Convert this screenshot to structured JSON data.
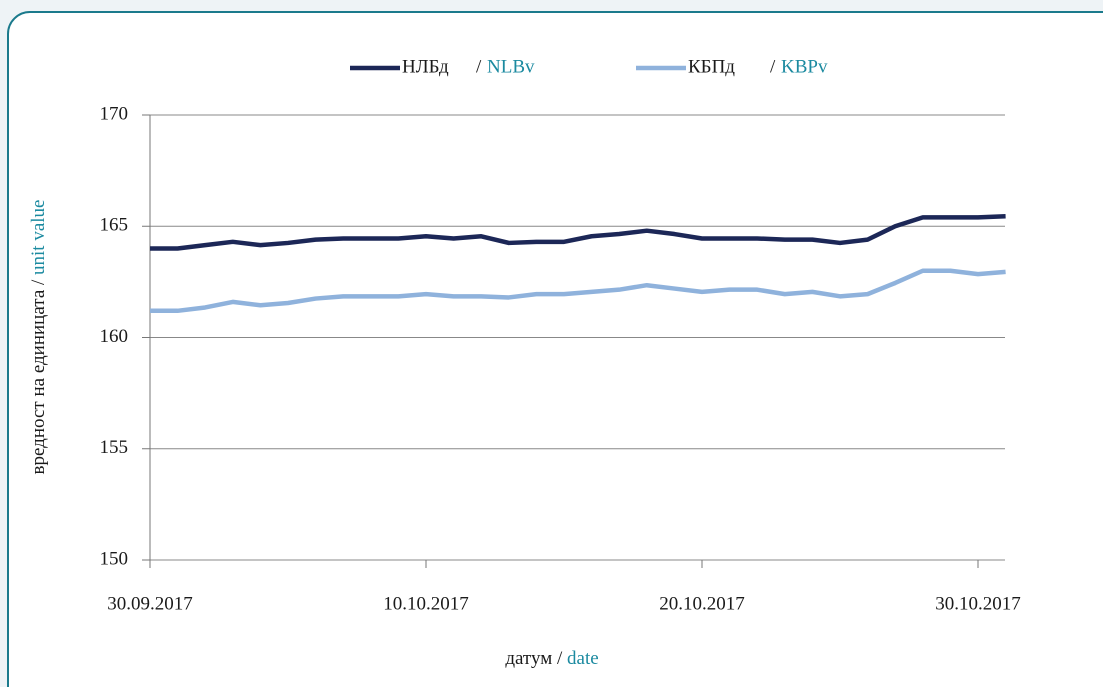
{
  "chart_data": {
    "type": "line",
    "separator": "/",
    "xlabel": [
      "датум",
      "date"
    ],
    "ylabel": [
      "вредност на единицата",
      "unit value"
    ],
    "x": [
      "30.09.2017",
      "01.10.2017",
      "02.10.2017",
      "03.10.2017",
      "04.10.2017",
      "05.10.2017",
      "06.10.2017",
      "07.10.2017",
      "08.10.2017",
      "09.10.2017",
      "10.10.2017",
      "11.10.2017",
      "12.10.2017",
      "13.10.2017",
      "14.10.2017",
      "15.10.2017",
      "16.10.2017",
      "17.10.2017",
      "18.10.2017",
      "19.10.2017",
      "20.10.2017",
      "21.10.2017",
      "22.10.2017",
      "23.10.2017",
      "24.10.2017",
      "25.10.2017",
      "26.10.2017",
      "27.10.2017",
      "28.10.2017",
      "29.10.2017",
      "30.10.2017",
      "31.10.2017"
    ],
    "xticks": [
      "30.09.2017",
      "10.10.2017",
      "20.10.2017",
      "30.10.2017"
    ],
    "ylim": [
      150,
      170
    ],
    "yticks": [
      150,
      155,
      160,
      165,
      170
    ],
    "grid": true,
    "series": [
      {
        "name": "НЛБд",
        "name_en": "NLBv",
        "color": "#1c2757",
        "values": [
          164.0,
          164.0,
          164.15,
          164.3,
          164.15,
          164.25,
          164.4,
          164.45,
          164.45,
          164.45,
          164.55,
          164.45,
          164.55,
          164.25,
          164.3,
          164.3,
          164.55,
          164.65,
          164.8,
          164.65,
          164.45,
          164.45,
          164.45,
          164.4,
          164.4,
          164.25,
          164.4,
          165.0,
          165.4,
          165.4,
          165.4,
          165.45
        ]
      },
      {
        "name": "КБПд",
        "name_en": "KBPv",
        "color": "#8fb2dc",
        "values": [
          161.2,
          161.2,
          161.35,
          161.6,
          161.45,
          161.55,
          161.75,
          161.85,
          161.85,
          161.85,
          161.95,
          161.85,
          161.85,
          161.8,
          161.95,
          161.95,
          162.05,
          162.15,
          162.35,
          162.2,
          162.05,
          162.15,
          162.15,
          161.95,
          162.05,
          161.85,
          161.95,
          162.45,
          163.0,
          163.0,
          162.85,
          162.95
        ]
      }
    ]
  }
}
